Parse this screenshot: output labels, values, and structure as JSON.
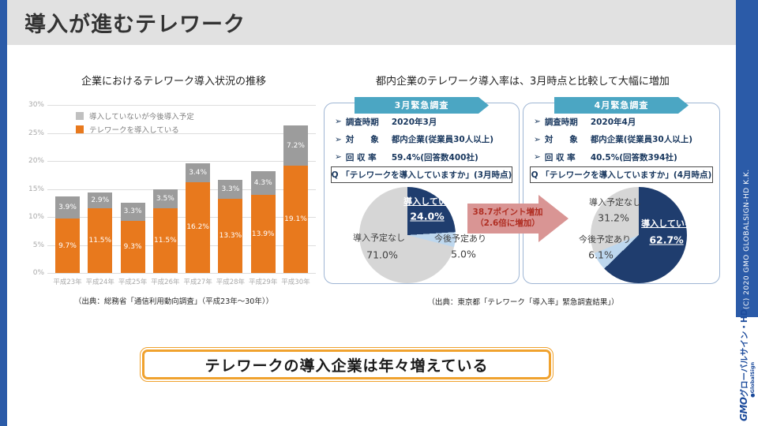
{
  "slide": {
    "title": "導入が進むテレワーク",
    "callout": "テレワークの導入企業は年々増えている",
    "copyright": "(C) 2020 GMO GLOBALSIGN-HD K.K.",
    "logo": {
      "brand": "GMO",
      "brand_suffix": "グローバルサイン・HD",
      "bullet": "●",
      "sub_brand": "GlobalSign"
    }
  },
  "left_section": {
    "title": "企業におけるテレワーク導入状況の推移",
    "legend": [
      {
        "label": "導入していないが今後導入予定",
        "color": "#C0C0C0"
      },
      {
        "label": "テレワークを導入している",
        "color": "#E8791D"
      }
    ],
    "source": "（出典：総務省「通信利用動向調査」（平成23年～30年））"
  },
  "right_section": {
    "title": "都内企業のテレワーク導入率は、3月時点と比較して大幅に増加",
    "source": "（出典：東京都「テレワーク「導入率」緊急調査結果」）",
    "arrow": {
      "line1": "38.7ポイント増加",
      "line2": "（2.6倍に増加）"
    },
    "panels": [
      {
        "header": "3月緊急調査",
        "bullets": [
          {
            "marker": "➢",
            "label": "調査時期",
            "value": "2020年3月"
          },
          {
            "marker": "➢",
            "label": "対　　象",
            "value": "都内企業(従業員30人以上)"
          },
          {
            "marker": "➢",
            "label": "回 収 率",
            "value": "59.4%(回答数400社)"
          }
        ],
        "question": "Q 「テレワークを導入していますか」(3月時点)"
      },
      {
        "header": "4月緊急調査",
        "bullets": [
          {
            "marker": "➢",
            "label": "調査時期",
            "value": "2020年4月"
          },
          {
            "marker": "➢",
            "label": "対　　象",
            "value": "都内企業(従業員30人以上)"
          },
          {
            "marker": "➢",
            "label": "回 収 率",
            "value": "40.5%(回答数394社)"
          }
        ],
        "question": "Q 「テレワークを導入していますか」(4月時点)"
      }
    ]
  },
  "chart_data": [
    {
      "type": "bar",
      "stacked": true,
      "title": "企業におけるテレワーク導入状況の推移",
      "categories": [
        "平成23年",
        "平成24年",
        "平成25年",
        "平成26年",
        "平成27年",
        "平成28年",
        "平成29年",
        "平成30年"
      ],
      "series": [
        {
          "name": "テレワークを導入している",
          "color": "#E8791D",
          "values": [
            9.7,
            11.5,
            9.3,
            11.5,
            16.2,
            13.3,
            13.9,
            19.1
          ]
        },
        {
          "name": "導入していないが今後導入予定",
          "color": "#9C9C9C",
          "values": [
            3.9,
            2.9,
            3.3,
            3.5,
            3.4,
            3.3,
            4.3,
            7.2
          ]
        }
      ],
      "xlabel": "",
      "ylabel": "",
      "ylim": [
        0,
        30
      ],
      "yticks": [
        "0%",
        "5%",
        "10%",
        "15%",
        "20%",
        "25%",
        "30%"
      ],
      "grid": true,
      "legend_position": "top-left"
    },
    {
      "type": "pie",
      "title": "3月緊急調査",
      "slices": [
        {
          "label": "導入している",
          "value": 24.0,
          "display": "24.0%",
          "color": "#1F3D6E",
          "emphasis": true
        },
        {
          "label": "今後予定あり",
          "value": 5.0,
          "display": "5.0%",
          "color": "#BDD7EE",
          "emphasis": false
        },
        {
          "label": "導入予定なし",
          "value": 71.0,
          "display": "71.0%",
          "color": "#D6D6D6",
          "emphasis": false
        }
      ]
    },
    {
      "type": "pie",
      "title": "4月緊急調査",
      "slices": [
        {
          "label": "導入している",
          "value": 62.7,
          "display": "62.7%",
          "color": "#1F3D6E",
          "emphasis": true
        },
        {
          "label": "今後予定あり",
          "value": 6.1,
          "display": "6.1%",
          "color": "#BDD7EE",
          "emphasis": false
        },
        {
          "label": "導入予定なし",
          "value": 31.2,
          "display": "31.2%",
          "color": "#D6D6D6",
          "emphasis": false
        }
      ]
    }
  ],
  "colors": {
    "accent_blue": "#2B5BA8",
    "header_gray": "#E1E1E1",
    "teal_banner": "#4BA6C3",
    "panel_border": "#9FB6D4",
    "bar_orange": "#E8791D",
    "bar_gray": "#9C9C9C",
    "pie_navy": "#1F3D6E",
    "pie_lightblue": "#BDD7EE",
    "pie_gray": "#D6D6D6",
    "arrow_fill": "#D99594",
    "arrow_text": "#B02E23",
    "callout_border": "#F0A22E",
    "logo_blue": "#1B4A9B"
  }
}
